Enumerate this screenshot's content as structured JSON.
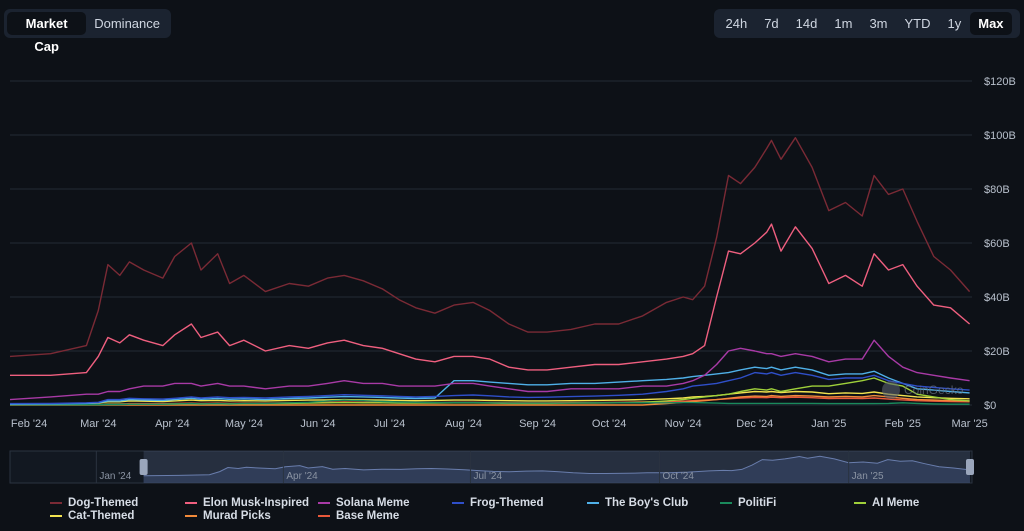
{
  "tabs_left": [
    {
      "label": "Market Cap",
      "active": true
    },
    {
      "label": "Dominance",
      "active": false
    }
  ],
  "tabs_right": [
    {
      "label": "24h",
      "active": false
    },
    {
      "label": "7d",
      "active": false
    },
    {
      "label": "14d",
      "active": false
    },
    {
      "label": "1m",
      "active": false
    },
    {
      "label": "3m",
      "active": false
    },
    {
      "label": "YTD",
      "active": false
    },
    {
      "label": "1y",
      "active": false
    },
    {
      "label": "Max",
      "active": true
    }
  ],
  "watermark": "CoinGecko",
  "chart_data": {
    "type": "line",
    "x_ticks": [
      "Feb '24",
      "Mar '24",
      "Apr '24",
      "May '24",
      "Jun '24",
      "Jul '24",
      "Aug '24",
      "Sep '24",
      "Oct '24",
      "Nov '24",
      "Dec '24",
      "Jan '25",
      "Feb '25",
      "Mar '25"
    ],
    "y_ticks": [
      "$0",
      "$20B",
      "$40B",
      "$60B",
      "$80B",
      "$100B",
      "$120B"
    ],
    "ylim": [
      0,
      120
    ],
    "x_dates": [
      "2024-01-24",
      "2024-02-10",
      "2024-02-25",
      "2024-03-01",
      "2024-03-05",
      "2024-03-10",
      "2024-03-14",
      "2024-03-20",
      "2024-03-28",
      "2024-04-02",
      "2024-04-09",
      "2024-04-13",
      "2024-04-20",
      "2024-04-25",
      "2024-05-01",
      "2024-05-10",
      "2024-05-20",
      "2024-05-28",
      "2024-06-05",
      "2024-06-12",
      "2024-06-20",
      "2024-06-28",
      "2024-07-05",
      "2024-07-12",
      "2024-07-20",
      "2024-07-28",
      "2024-08-05",
      "2024-08-12",
      "2024-08-20",
      "2024-08-28",
      "2024-09-05",
      "2024-09-15",
      "2024-09-25",
      "2024-10-05",
      "2024-10-15",
      "2024-10-25",
      "2024-11-01",
      "2024-11-05",
      "2024-11-10",
      "2024-11-15",
      "2024-11-20",
      "2024-11-25",
      "2024-12-01",
      "2024-12-06",
      "2024-12-08",
      "2024-12-12",
      "2024-12-18",
      "2024-12-25",
      "2025-01-01",
      "2025-01-08",
      "2025-01-15",
      "2025-01-20",
      "2025-01-26",
      "2025-02-01",
      "2025-02-07",
      "2025-02-14",
      "2025-02-21",
      "2025-03-01"
    ],
    "series": [
      {
        "name": "Dog-Themed",
        "color": "#7a2a35",
        "values": [
          18,
          19,
          22,
          35,
          52,
          48,
          53,
          50,
          47,
          55,
          60,
          50,
          56,
          45,
          48,
          42,
          45,
          44,
          47,
          48,
          46,
          43,
          39,
          36,
          34,
          37,
          38,
          35,
          30,
          27,
          27,
          28,
          30,
          30,
          33,
          38,
          40,
          39,
          44,
          62,
          85,
          82,
          88,
          95,
          98,
          91,
          99,
          88,
          72,
          75,
          70,
          85,
          78,
          80,
          68,
          55,
          50,
          42
        ]
      },
      {
        "name": "Elon Musk-Inspired",
        "color": "#ef5f7f",
        "values": [
          11,
          11,
          12,
          18,
          25,
          23,
          26,
          24,
          22,
          26,
          30,
          25,
          27,
          22,
          24,
          20,
          22,
          21,
          23,
          24,
          22,
          21,
          19,
          17,
          16,
          18,
          18,
          17,
          14,
          13,
          13,
          14,
          15,
          15,
          16,
          17,
          18,
          19,
          22,
          40,
          57,
          56,
          60,
          64,
          67,
          57,
          66,
          58,
          45,
          48,
          44,
          56,
          50,
          52,
          44,
          37,
          36,
          30
        ]
      },
      {
        "name": "Solana Meme",
        "color": "#a83aa6",
        "values": [
          2,
          3,
          4,
          4,
          5,
          5,
          6,
          7,
          7,
          8,
          8,
          7,
          8,
          7,
          7,
          6,
          7,
          7,
          8,
          9,
          8,
          8,
          7,
          7,
          7,
          8,
          8,
          7,
          6,
          5,
          5,
          6,
          6,
          6,
          7,
          7,
          8,
          9,
          11,
          15,
          20,
          21,
          20,
          19,
          19,
          18,
          19,
          18,
          16,
          17,
          17,
          24,
          18,
          14,
          12,
          11,
          10,
          9
        ]
      },
      {
        "name": "Frog-Themed",
        "color": "#2f4fc9",
        "values": [
          0.5,
          0.6,
          0.8,
          1,
          2,
          2,
          2.5,
          2.3,
          2.2,
          2.5,
          3,
          2.6,
          3,
          2.7,
          2.8,
          2.6,
          3,
          3.2,
          3.5,
          3.8,
          3.6,
          3.4,
          3.2,
          3,
          3.2,
          3.5,
          3.7,
          3.4,
          3,
          2.8,
          2.9,
          3.1,
          3.3,
          3.6,
          4,
          5,
          6,
          7,
          7.5,
          8,
          9,
          10,
          12,
          11.5,
          12,
          11,
          12,
          11,
          9.5,
          10,
          10,
          11,
          9,
          8,
          7,
          6.5,
          6,
          5.5
        ]
      },
      {
        "name": "The Boy's Club",
        "color": "#4fb0e8",
        "values": [
          0.3,
          0.4,
          0.6,
          0.8,
          1.5,
          1.5,
          2,
          1.8,
          1.7,
          2,
          2.5,
          2.1,
          2.4,
          2.1,
          2.3,
          2,
          2.4,
          2.6,
          2.9,
          3.1,
          3,
          2.8,
          2.6,
          2.4,
          2.6,
          9,
          9,
          8.5,
          8,
          7.5,
          7.5,
          8,
          8,
          8.5,
          9,
          9.5,
          10,
          10.5,
          11,
          11.5,
          12,
          13,
          14,
          13.5,
          14,
          13,
          14,
          13,
          11,
          11.5,
          11.5,
          12.5,
          10,
          8,
          6,
          5.5,
          5,
          4.5
        ]
      },
      {
        "name": "PolitiFi",
        "color": "#1a8a5c",
        "values": [
          0.1,
          0.1,
          0.1,
          0.1,
          0.2,
          0.2,
          0.3,
          0.3,
          0.3,
          0.4,
          0.5,
          0.4,
          0.5,
          0.4,
          0.6,
          0.6,
          0.8,
          1,
          1.5,
          1.8,
          1.6,
          1.3,
          1.1,
          1,
          0.9,
          0.9,
          0.9,
          0.8,
          0.7,
          0.7,
          0.7,
          0.7,
          0.8,
          0.8,
          0.8,
          0.8,
          0.9,
          0.9,
          0.8,
          0.7,
          0.6,
          0.6,
          0.6,
          0.6,
          0.6,
          0.6,
          0.6,
          0.6,
          0.5,
          0.5,
          0.5,
          0.5,
          0.6,
          0.8,
          0.6,
          0.4,
          0.3,
          0.3
        ]
      },
      {
        "name": "AI Meme",
        "color": "#9fd03a",
        "values": [
          0.1,
          0.1,
          0.1,
          0.2,
          0.3,
          0.3,
          0.3,
          0.3,
          0.3,
          0.4,
          0.5,
          0.4,
          0.5,
          0.4,
          0.5,
          0.5,
          0.6,
          0.7,
          0.8,
          0.9,
          0.8,
          0.8,
          0.7,
          0.7,
          0.7,
          0.8,
          0.8,
          0.7,
          0.6,
          0.6,
          0.6,
          0.7,
          0.7,
          0.8,
          1,
          1.5,
          2,
          2.5,
          3,
          3.5,
          4,
          5,
          6,
          5.5,
          6,
          5,
          6,
          7,
          7,
          8,
          9,
          10,
          8,
          7,
          4,
          3,
          2,
          1.5
        ]
      },
      {
        "name": "Cat-Themed",
        "color": "#f2e350",
        "values": [
          0.2,
          0.3,
          0.5,
          0.8,
          1.2,
          1.2,
          1.5,
          1.4,
          1.3,
          1.5,
          1.8,
          1.6,
          1.7,
          1.5,
          1.6,
          1.5,
          1.7,
          1.8,
          1.9,
          2,
          1.9,
          1.8,
          1.7,
          1.6,
          1.7,
          1.8,
          1.8,
          1.7,
          1.6,
          1.5,
          1.5,
          1.6,
          1.7,
          1.8,
          2,
          2.3,
          2.6,
          3,
          3.2,
          3.5,
          4,
          4.5,
          5,
          4.8,
          5,
          4.6,
          5,
          4.8,
          4.2,
          4.5,
          4.3,
          4.8,
          4,
          3.5,
          3,
          2.7,
          2.5,
          2.3
        ]
      },
      {
        "name": "Murad Picks",
        "color": "#f28a3a",
        "values": [
          0,
          0,
          0,
          0,
          0,
          0,
          0,
          0,
          0,
          0,
          0,
          0,
          0,
          0,
          0,
          0,
          0,
          0,
          0,
          0,
          0,
          0,
          0,
          0,
          0,
          0,
          0,
          0,
          0,
          0,
          0,
          0,
          0,
          0,
          0,
          0.5,
          1,
          1.3,
          1.6,
          2,
          2.5,
          3,
          3.3,
          3.2,
          3.5,
          3.2,
          3.5,
          3.3,
          3,
          3.2,
          3,
          3.5,
          3,
          2.5,
          2,
          1.8,
          1.6,
          1.5
        ]
      },
      {
        "name": "Base Meme",
        "color": "#e8583a",
        "values": [
          0.1,
          0.1,
          0.2,
          0.2,
          0.4,
          0.4,
          0.5,
          0.5,
          0.5,
          0.6,
          0.7,
          0.6,
          0.7,
          0.6,
          0.7,
          0.7,
          0.8,
          0.9,
          1,
          1.1,
          1,
          1,
          0.9,
          0.9,
          0.9,
          1,
          1,
          0.9,
          0.8,
          0.8,
          0.8,
          0.9,
          0.9,
          1,
          1.1,
          1.2,
          1.4,
          1.6,
          1.8,
          2,
          2.3,
          2.6,
          2.8,
          2.7,
          2.9,
          2.7,
          2.9,
          2.7,
          2.4,
          2.5,
          2.4,
          2.6,
          2.2,
          1.9,
          1.6,
          1.4,
          1.3,
          1.2
        ]
      }
    ],
    "navigator_ticks": [
      "Jan '24",
      "Apr '24",
      "Jul '24",
      "Oct '24",
      "Jan '25"
    ],
    "legend_placement": "bottom",
    "grid": true
  }
}
